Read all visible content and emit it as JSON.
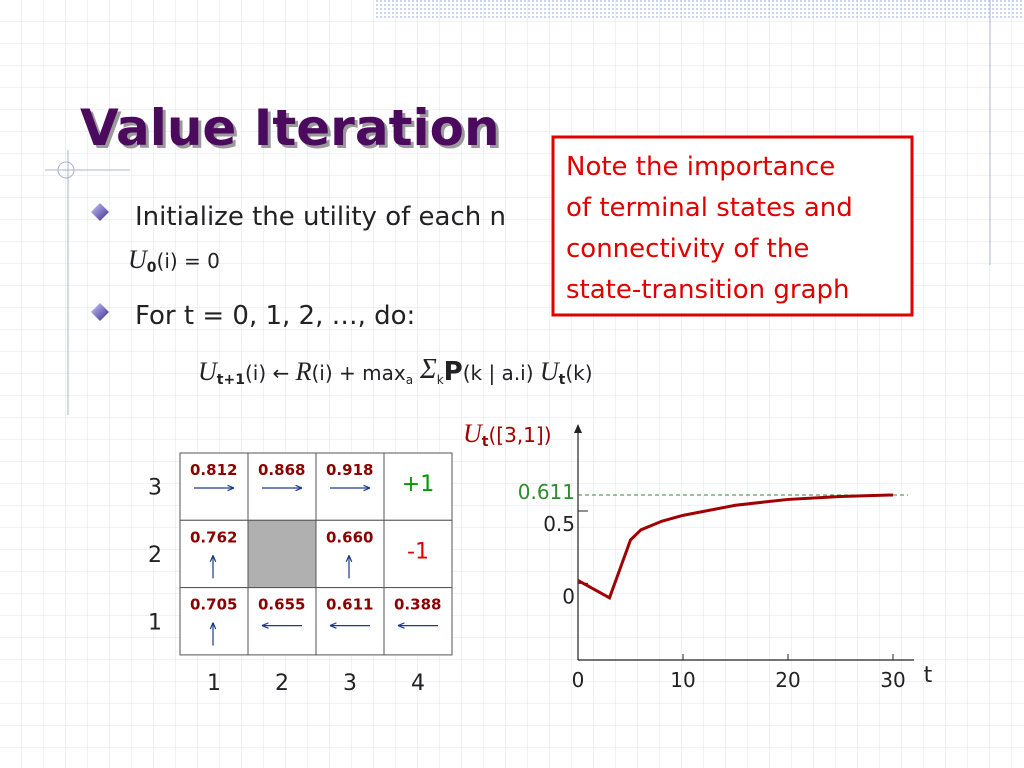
{
  "title": "Value Iteration",
  "bullets": [
    {
      "text": "Initialize the utility of each n",
      "formula": [
        "U",
        "0",
        "(i) = 0"
      ]
    },
    {
      "text": "For t = 0, 1, 2, …, do:",
      "formula": [
        "U",
        "t+1",
        "(i) ← ",
        "R",
        "(i) + max",
        "a",
        " Σ",
        "k",
        "P",
        "(k | a.i) ",
        "U",
        "t",
        "(k)"
      ]
    }
  ],
  "note": [
    "Note the importance",
    "of terminal states and",
    "connectivity of the",
    "state-transition graph"
  ],
  "grid": {
    "row_labels": [
      "3",
      "2",
      "1"
    ],
    "col_labels": [
      "1",
      "2",
      "3",
      "4"
    ],
    "cells": [
      [
        {
          "value": "0.812",
          "arrow": "right"
        },
        {
          "value": "0.868",
          "arrow": "right"
        },
        {
          "value": "0.918",
          "arrow": "right"
        },
        {
          "value": "+1",
          "color": "#009900"
        }
      ],
      [
        {
          "value": "0.762",
          "arrow": "up"
        },
        {
          "wall": true
        },
        {
          "value": "0.660",
          "arrow": "up"
        },
        {
          "value": "-1",
          "color": "#e00000"
        }
      ],
      [
        {
          "value": "0.705",
          "arrow": "up"
        },
        {
          "value": "0.655",
          "arrow": "left"
        },
        {
          "value": "0.611",
          "arrow": "left"
        },
        {
          "value": "0.388",
          "arrow": "left"
        }
      ]
    ]
  },
  "chart_data": {
    "type": "line",
    "ylabel": [
      "U",
      "t",
      "([3,1])"
    ],
    "xlabel": "t",
    "x": [
      0,
      3,
      4,
      5,
      6,
      8,
      10,
      15,
      20,
      25,
      30
    ],
    "values": [
      0.02,
      -0.1,
      0.1,
      0.3,
      0.37,
      0.43,
      0.47,
      0.54,
      0.58,
      0.6,
      0.611
    ],
    "color": "#a00000",
    "xlim": [
      0,
      32
    ],
    "ylim": [
      -0.53,
      1.06
    ],
    "xticks": [
      0,
      10,
      20,
      30
    ],
    "yticks": [
      0,
      0.5,
      0.611
    ],
    "reference_color": "#2e8b2e"
  }
}
